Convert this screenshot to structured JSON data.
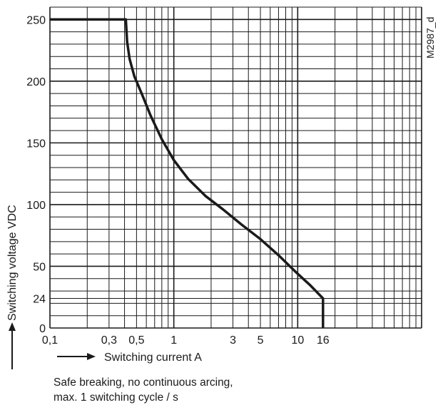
{
  "chart_data": {
    "type": "line",
    "x_scale": "log",
    "x_axis_range": [
      0.1,
      100
    ],
    "y_axis_range": [
      0,
      260
    ],
    "grid": true,
    "x_tick_labels": [
      "0,1",
      "0,3",
      "0,5",
      "1",
      "3",
      "5",
      "10",
      "16"
    ],
    "x_tick_values": [
      0.1,
      0.3,
      0.5,
      1,
      3,
      5,
      10,
      16
    ],
    "y_tick_labels": [
      "0",
      "24",
      "50",
      "100",
      "150",
      "200",
      "250"
    ],
    "y_tick_values": [
      0,
      24,
      50,
      100,
      150,
      200,
      250
    ],
    "xlabel": "Switching current A",
    "ylabel": "Switching voltage VDC",
    "figure_id": "M2987_d",
    "series": [
      {
        "x": [
          0.1,
          0.41,
          0.42,
          0.44,
          0.48,
          0.55,
          0.65,
          0.8,
          1.0,
          1.3,
          1.8,
          2.5,
          3.5,
          5.0,
          7.0,
          9.5,
          12.5,
          16,
          16
        ],
        "y": [
          250,
          250,
          232,
          218,
          204,
          190,
          172,
          153,
          136,
          121,
          107,
          96,
          84,
          72,
          59,
          46,
          35,
          24,
          0
        ]
      }
    ],
    "color": "#1a1a1a"
  },
  "notes": {
    "line1": "Safe breaking, no continuous arcing,",
    "line2": "max. 1 switching cycle / s"
  }
}
